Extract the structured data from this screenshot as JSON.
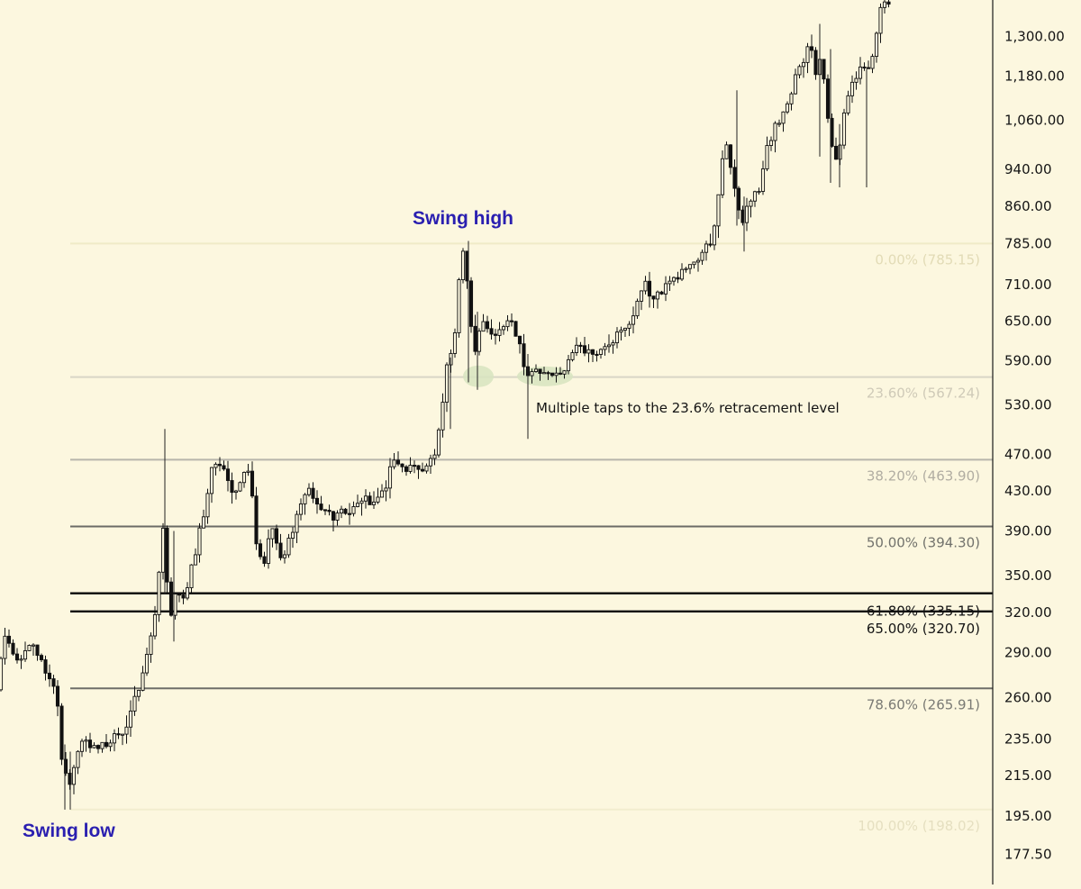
{
  "chart_data": {
    "type": "candlestick",
    "scale": "log",
    "grid": false,
    "ylim": [
      165,
      1420
    ],
    "y_ticks": [
      "1,300.00",
      "1,180.00",
      "1,060.00",
      "940.00",
      "860.00",
      "785.00",
      "710.00",
      "650.00",
      "590.00",
      "530.00",
      "470.00",
      "430.00",
      "390.00",
      "350.00",
      "320.00",
      "290.00",
      "260.00",
      "235.00",
      "215.00",
      "195.00",
      "177.50"
    ],
    "fib_levels": [
      {
        "label": "0.00% (785.15)",
        "price": 785.15,
        "color": "#f0ebc8",
        "text_color": "#e2dbb6"
      },
      {
        "label": "23.60% (567.24)",
        "price": 567.24,
        "color": "#d9d6c6",
        "text_color": "#cfcab8"
      },
      {
        "label": "38.20% (463.90)",
        "price": 463.9,
        "color": "#b7b5ab",
        "text_color": "#b1ada2"
      },
      {
        "label": "50.00% (394.30)",
        "price": 394.3,
        "color": "#6b6b66",
        "text_color": "#72726c"
      },
      {
        "label": "61.80% (335.15)",
        "price": 335.15,
        "color": "#0a0a0a",
        "text_color": "#141414"
      },
      {
        "label": "65.00% (320.70)",
        "price": 320.7,
        "color": "#0a0a0a",
        "text_color": "#141414"
      },
      {
        "label": "78.60% (265.91)",
        "price": 265.91,
        "color": "#6e6e69",
        "text_color": "#7a7a74"
      },
      {
        "label": "100.00% (198.02)",
        "price": 198.02,
        "color": "#f2edcf",
        "text_color": "#e5dfc0"
      }
    ],
    "annotations": {
      "swing_high": "Swing high",
      "swing_low": "Swing low",
      "note": "Multiple taps to the 23.6% retracement level"
    },
    "anchors": [
      [
        0,
        265
      ],
      [
        10,
        300
      ],
      [
        25,
        285
      ],
      [
        40,
        298
      ],
      [
        55,
        278
      ],
      [
        68,
        262
      ],
      [
        72,
        225
      ],
      [
        82,
        210
      ],
      [
        95,
        233
      ],
      [
        110,
        233
      ],
      [
        125,
        232
      ],
      [
        140,
        240
      ],
      [
        155,
        258
      ],
      [
        168,
        290
      ],
      [
        178,
        328
      ],
      [
        186,
        392
      ],
      [
        193,
        312
      ],
      [
        200,
        335
      ],
      [
        210,
        328
      ],
      [
        222,
        375
      ],
      [
        232,
        405
      ],
      [
        240,
        458
      ],
      [
        250,
        455
      ],
      [
        262,
        428
      ],
      [
        272,
        442
      ],
      [
        283,
        450
      ],
      [
        290,
        368
      ],
      [
        298,
        355
      ],
      [
        305,
        395
      ],
      [
        313,
        370
      ],
      [
        322,
        372
      ],
      [
        330,
        390
      ],
      [
        340,
        420
      ],
      [
        350,
        432
      ],
      [
        360,
        415
      ],
      [
        372,
        405
      ],
      [
        384,
        410
      ],
      [
        396,
        412
      ],
      [
        408,
        418
      ],
      [
        420,
        420
      ],
      [
        430,
        428
      ],
      [
        440,
        462
      ],
      [
        450,
        458
      ],
      [
        460,
        455
      ],
      [
        470,
        455
      ],
      [
        480,
        452
      ],
      [
        488,
        472
      ],
      [
        494,
        520
      ],
      [
        500,
        575
      ],
      [
        506,
        600
      ],
      [
        512,
        670
      ],
      [
        516,
        770
      ],
      [
        520,
        778
      ],
      [
        526,
        660
      ],
      [
        532,
        610
      ],
      [
        540,
        660
      ],
      [
        550,
        625
      ],
      [
        560,
        640
      ],
      [
        570,
        650
      ],
      [
        580,
        628
      ],
      [
        588,
        575
      ],
      [
        598,
        575
      ],
      [
        610,
        572
      ],
      [
        622,
        568
      ],
      [
        632,
        578
      ],
      [
        642,
        612
      ],
      [
        655,
        602
      ],
      [
        668,
        605
      ],
      [
        680,
        615
      ],
      [
        690,
        625
      ],
      [
        700,
        632
      ],
      [
        710,
        672
      ],
      [
        720,
        712
      ],
      [
        732,
        688
      ],
      [
        742,
        700
      ],
      [
        752,
        718
      ],
      [
        762,
        738
      ],
      [
        772,
        750
      ],
      [
        785,
        762
      ],
      [
        795,
        800
      ],
      [
        800,
        860
      ],
      [
        806,
        950
      ],
      [
        812,
        1000
      ],
      [
        818,
        920
      ],
      [
        822,
        860
      ],
      [
        828,
        820
      ],
      [
        836,
        870
      ],
      [
        846,
        890
      ],
      [
        856,
        1000
      ],
      [
        866,
        1050
      ],
      [
        876,
        1080
      ],
      [
        886,
        1160
      ],
      [
        895,
        1220
      ],
      [
        904,
        1300
      ],
      [
        910,
        1180
      ],
      [
        916,
        1240
      ],
      [
        922,
        1100
      ],
      [
        928,
        1000
      ],
      [
        934,
        960
      ],
      [
        940,
        1060
      ],
      [
        948,
        1140
      ],
      [
        958,
        1200
      ],
      [
        968,
        1180
      ],
      [
        976,
        1290
      ],
      [
        983,
        1400
      ],
      [
        989,
        1425
      ]
    ],
    "candle_spacing": 4.5,
    "candle_width": 3.2,
    "wick_spikes": [
      {
        "x": 183,
        "high": 500,
        "low": 335
      },
      {
        "x": 193,
        "high": 390,
        "low": 298
      },
      {
        "x": 72,
        "high": 232,
        "low": 198
      },
      {
        "x": 78,
        "high": 228,
        "low": 198
      },
      {
        "x": 500,
        "high": 595,
        "low": 500
      },
      {
        "x": 520,
        "high": 790,
        "low": 560
      },
      {
        "x": 530,
        "high": 665,
        "low": 550
      },
      {
        "x": 586,
        "high": 600,
        "low": 488
      },
      {
        "x": 818,
        "high": 1140,
        "low": 820
      },
      {
        "x": 826,
        "high": 880,
        "low": 770
      },
      {
        "x": 910,
        "high": 1340,
        "low": 970
      },
      {
        "x": 922,
        "high": 1260,
        "low": 910
      },
      {
        "x": 932,
        "high": 1050,
        "low": 900
      },
      {
        "x": 962,
        "high": 1200,
        "low": 900
      }
    ],
    "highlight_ovals": [
      {
        "x": 531,
        "price": 567,
        "rx": 17,
        "ry": 12
      },
      {
        "x": 605,
        "price": 567,
        "rx": 31,
        "ry": 11
      }
    ]
  }
}
